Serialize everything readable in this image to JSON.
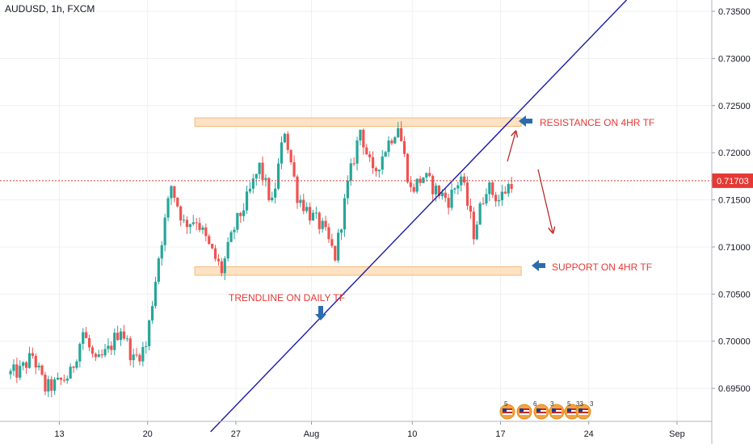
{
  "header": {
    "symbol_label": "AUDUSD, 1h, FXCM"
  },
  "colors": {
    "up": "#26a69a",
    "down": "#ef5350",
    "trendline": "#1a1aa6",
    "zone_fill": "#fde0bf",
    "zone_stroke": "#f6b26b",
    "annotation_text": "#e53935",
    "annotation_arrow": "#2b6cb0",
    "current_price_line": "#e53935",
    "grid": "#eef0f3"
  },
  "current_price": {
    "label": "0.71703",
    "value": 0.71703
  },
  "annotations": {
    "resistance": "RESISTANCE ON 4HR TF",
    "support": "SUPPORT ON 4HR TF",
    "trendline": "TRENDLINE ON DAILY TF"
  },
  "events": {
    "icons": [
      "flag-icon",
      "flag-icon",
      "flag-icon",
      "flag-icon",
      "flag-icon",
      "flag-icon"
    ],
    "labels": [
      "5",
      "6",
      "3",
      "5",
      "33",
      "3",
      "3"
    ]
  },
  "chart_data": {
    "type": "candlestick",
    "title": "",
    "xlabel": "",
    "ylabel": "",
    "x_ticks": [
      "13",
      "20",
      "27",
      "Aug",
      "10",
      "17",
      "24",
      "Sep"
    ],
    "y_ticks": [
      "0.73500",
      "0.73000",
      "0.72500",
      "0.72000",
      "0.71500",
      "0.71000",
      "0.70500",
      "0.70000",
      "0.69500"
    ],
    "ylim": [
      0.6915,
      0.7362
    ],
    "grid": true,
    "price_path": [
      [
        "2020-07-09",
        0.6965
      ],
      [
        "2020-07-10",
        0.6968
      ],
      [
        "2020-07-11",
        0.6985
      ],
      [
        "2020-07-12",
        0.695
      ],
      [
        "2020-07-13",
        0.6955
      ],
      [
        "2020-07-14",
        0.6965
      ],
      [
        "2020-07-15",
        0.701
      ],
      [
        "2020-07-16",
        0.6975
      ],
      [
        "2020-07-17",
        0.699
      ],
      [
        "2020-07-18",
        0.7015
      ],
      [
        "2020-07-19",
        0.698
      ],
      [
        "2020-07-20",
        0.6995
      ],
      [
        "2020-07-21",
        0.709
      ],
      [
        "2020-07-22",
        0.7165
      ],
      [
        "2020-07-23",
        0.7125
      ],
      [
        "2020-07-24",
        0.713
      ],
      [
        "2020-07-25",
        0.71
      ],
      [
        "2020-07-26",
        0.7075
      ],
      [
        "2020-07-27",
        0.712
      ],
      [
        "2020-07-28",
        0.715
      ],
      [
        "2020-07-29",
        0.7185
      ],
      [
        "2020-07-30",
        0.7145
      ],
      [
        "2020-07-31",
        0.7225
      ],
      [
        "2020-08-01",
        0.7155
      ],
      [
        "2020-08-02",
        0.7135
      ],
      [
        "2020-08-03",
        0.712
      ],
      [
        "2020-08-04",
        0.709
      ],
      [
        "2020-08-05",
        0.7165
      ],
      [
        "2020-08-06",
        0.7225
      ],
      [
        "2020-08-07",
        0.7175
      ],
      [
        "2020-08-08",
        0.7205
      ],
      [
        "2020-08-09",
        0.723
      ],
      [
        "2020-08-10",
        0.716
      ],
      [
        "2020-08-11",
        0.7175
      ],
      [
        "2020-08-12",
        0.716
      ],
      [
        "2020-08-13",
        0.715
      ],
      [
        "2020-08-14",
        0.7175
      ],
      [
        "2020-08-15",
        0.7115
      ],
      [
        "2020-08-16",
        0.7165
      ],
      [
        "2020-08-17",
        0.715
      ],
      [
        "2020-08-18",
        0.717
      ]
    ],
    "series": [
      {
        "name": "",
        "type": "line",
        "points": [
          [
            "2020-07-25",
            0.6904
          ],
          [
            "2020-08-27",
            0.7362
          ]
        ]
      }
    ],
    "zones": [
      {
        "label": "RESISTANCE ON 4HR TF",
        "y_range": [
          0.7228,
          0.7237
        ],
        "x_range": [
          "2020-07-24",
          "2020-08-18"
        ]
      },
      {
        "label": "SUPPORT ON 4HR TF",
        "y_range": [
          0.707,
          0.7079
        ],
        "x_range": [
          "2020-07-24",
          "2020-08-18"
        ]
      }
    ],
    "horizontal_lines": [
      {
        "value": 0.71703,
        "style": "dotted"
      }
    ]
  }
}
